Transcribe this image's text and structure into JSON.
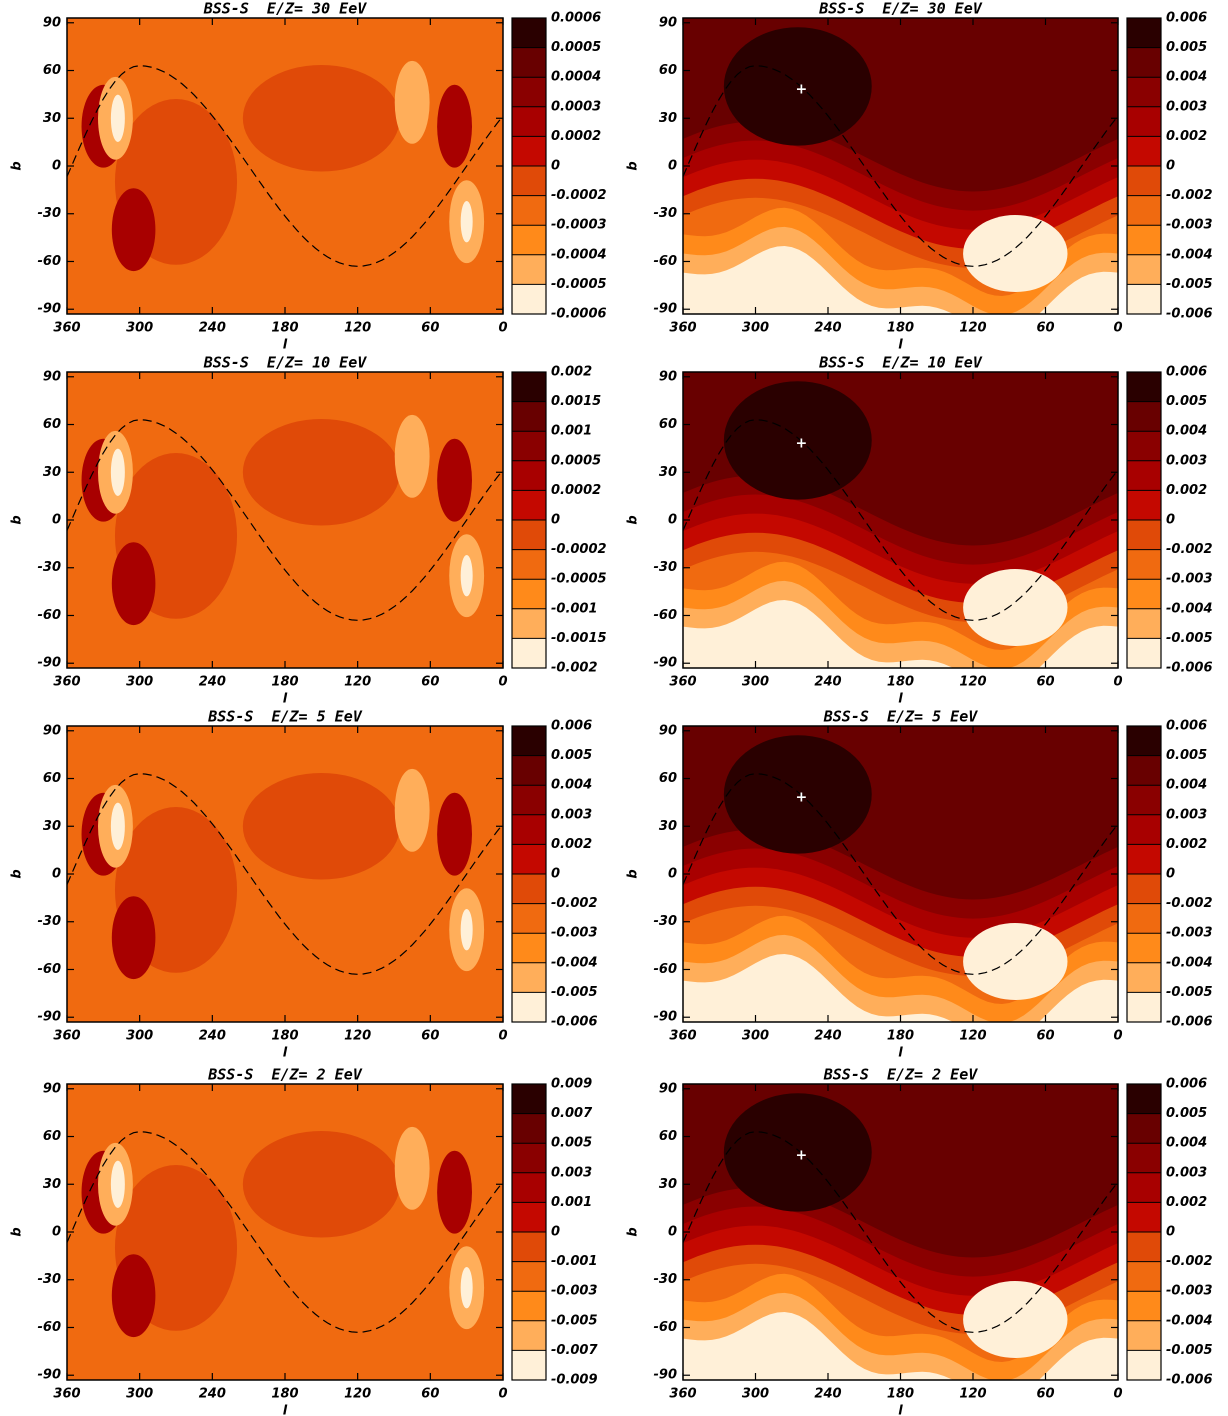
{
  "chart_data": [
    {
      "type": "heatmap",
      "title": "BSS-S  E/Z= 30 EeV",
      "xlabel": "l",
      "ylabel": "b",
      "xlim": [
        360,
        0
      ],
      "xticks": [
        360,
        300,
        240,
        180,
        120,
        60,
        0
      ],
      "ylim": [
        -93,
        93
      ],
      "yticks": [
        -90,
        -60,
        -30,
        0,
        30,
        60,
        90
      ],
      "colorbar": {
        "ticks": [
          0.0006,
          0.0005,
          0.0004,
          0.0003,
          0.0002,
          0,
          -0.0002,
          -0.0003,
          -0.0004,
          -0.0005,
          -0.0006
        ],
        "colors": [
          "#2a0000",
          "#680000",
          "#8a0000",
          "#a80000",
          "#c40800",
          "#e04a08",
          "#f06a10",
          "#ff8a1a",
          "#ffae5a",
          "#fff0d8"
        ]
      }
    },
    {
      "type": "heatmap",
      "title": "BSS-S  E/Z= 30 EeV",
      "xlabel": "l",
      "ylabel": "b",
      "xlim": [
        360,
        0
      ],
      "xticks": [
        360,
        300,
        240,
        180,
        120,
        60,
        0
      ],
      "ylim": [
        -93,
        93
      ],
      "yticks": [
        -90,
        -60,
        -30,
        0,
        30,
        60,
        90
      ],
      "colorbar": {
        "ticks": [
          0.006,
          0.005,
          0.004,
          0.003,
          0.002,
          0,
          -0.002,
          -0.003,
          -0.004,
          -0.005,
          -0.006
        ],
        "colors": [
          "#2a0000",
          "#680000",
          "#8a0000",
          "#a80000",
          "#c40800",
          "#e04a08",
          "#f06a10",
          "#ff8a1a",
          "#ffae5a",
          "#fff0d8"
        ]
      }
    },
    {
      "type": "heatmap",
      "title": "BSS-S  E/Z= 10 EeV",
      "xlabel": "l",
      "ylabel": "b",
      "xlim": [
        360,
        0
      ],
      "xticks": [
        360,
        300,
        240,
        180,
        120,
        60,
        0
      ],
      "ylim": [
        -93,
        93
      ],
      "yticks": [
        -90,
        -60,
        -30,
        0,
        30,
        60,
        90
      ],
      "colorbar": {
        "ticks": [
          0.002,
          0.0015,
          0.001,
          0.0005,
          0.0002,
          0,
          -0.0002,
          -0.0005,
          -0.001,
          -0.0015,
          -0.002
        ],
        "colors": [
          "#2a0000",
          "#680000",
          "#8a0000",
          "#a80000",
          "#c40800",
          "#e04a08",
          "#f06a10",
          "#ff8a1a",
          "#ffae5a",
          "#fff0d8"
        ]
      }
    },
    {
      "type": "heatmap",
      "title": "BSS-S  E/Z= 10 EeV",
      "xlabel": "l",
      "ylabel": "b",
      "xlim": [
        360,
        0
      ],
      "xticks": [
        360,
        300,
        240,
        180,
        120,
        60,
        0
      ],
      "ylim": [
        -93,
        93
      ],
      "yticks": [
        -90,
        -60,
        -30,
        0,
        30,
        60,
        90
      ],
      "colorbar": {
        "ticks": [
          0.006,
          0.005,
          0.004,
          0.003,
          0.002,
          0,
          -0.002,
          -0.003,
          -0.004,
          -0.005,
          -0.006
        ],
        "colors": [
          "#2a0000",
          "#680000",
          "#8a0000",
          "#a80000",
          "#c40800",
          "#e04a08",
          "#f06a10",
          "#ff8a1a",
          "#ffae5a",
          "#fff0d8"
        ]
      }
    },
    {
      "type": "heatmap",
      "title": "BSS-S  E/Z= 5 EeV",
      "xlabel": "l",
      "ylabel": "b",
      "xlim": [
        360,
        0
      ],
      "xticks": [
        360,
        300,
        240,
        180,
        120,
        60,
        0
      ],
      "ylim": [
        -93,
        93
      ],
      "yticks": [
        -90,
        -60,
        -30,
        0,
        30,
        60,
        90
      ],
      "colorbar": {
        "ticks": [
          0.006,
          0.005,
          0.004,
          0.003,
          0.002,
          0,
          -0.002,
          -0.003,
          -0.004,
          -0.005,
          -0.006
        ],
        "colors": [
          "#2a0000",
          "#680000",
          "#8a0000",
          "#a80000",
          "#c40800",
          "#e04a08",
          "#f06a10",
          "#ff8a1a",
          "#ffae5a",
          "#fff0d8"
        ]
      }
    },
    {
      "type": "heatmap",
      "title": "BSS-S  E/Z= 5 EeV",
      "xlabel": "l",
      "ylabel": "b",
      "xlim": [
        360,
        0
      ],
      "xticks": [
        360,
        300,
        240,
        180,
        120,
        60,
        0
      ],
      "ylim": [
        -93,
        93
      ],
      "yticks": [
        -90,
        -60,
        -30,
        0,
        30,
        60,
        90
      ],
      "colorbar": {
        "ticks": [
          0.006,
          0.005,
          0.004,
          0.003,
          0.002,
          0,
          -0.002,
          -0.003,
          -0.004,
          -0.005,
          -0.006
        ],
        "colors": [
          "#2a0000",
          "#680000",
          "#8a0000",
          "#a80000",
          "#c40800",
          "#e04a08",
          "#f06a10",
          "#ff8a1a",
          "#ffae5a",
          "#fff0d8"
        ]
      }
    },
    {
      "type": "heatmap",
      "title": "BSS-S  E/Z= 2 EeV",
      "xlabel": "l",
      "ylabel": "b",
      "xlim": [
        360,
        0
      ],
      "xticks": [
        360,
        300,
        240,
        180,
        120,
        60,
        0
      ],
      "ylim": [
        -93,
        93
      ],
      "yticks": [
        -90,
        -60,
        -30,
        0,
        30,
        60,
        90
      ],
      "colorbar": {
        "ticks": [
          0.009,
          0.007,
          0.005,
          0.003,
          0.001,
          0,
          -0.001,
          -0.003,
          -0.005,
          -0.007,
          -0.009
        ],
        "colors": [
          "#2a0000",
          "#680000",
          "#8a0000",
          "#a80000",
          "#c40800",
          "#e04a08",
          "#f06a10",
          "#ff8a1a",
          "#ffae5a",
          "#fff0d8"
        ]
      }
    },
    {
      "type": "heatmap",
      "title": "BSS-S  E/Z= 2 EeV",
      "xlabel": "l",
      "ylabel": "b",
      "xlim": [
        360,
        0
      ],
      "xticks": [
        360,
        300,
        240,
        180,
        120,
        60,
        0
      ],
      "ylim": [
        -93,
        93
      ],
      "yticks": [
        -90,
        -60,
        -30,
        0,
        30,
        60,
        90
      ],
      "colorbar": {
        "ticks": [
          0.006,
          0.005,
          0.004,
          0.003,
          0.002,
          0,
          -0.002,
          -0.003,
          -0.004,
          -0.005,
          -0.006
        ],
        "colors": [
          "#2a0000",
          "#680000",
          "#8a0000",
          "#a80000",
          "#c40800",
          "#e04a08",
          "#f06a10",
          "#ff8a1a",
          "#ffae5a",
          "#fff0d8"
        ]
      }
    }
  ]
}
